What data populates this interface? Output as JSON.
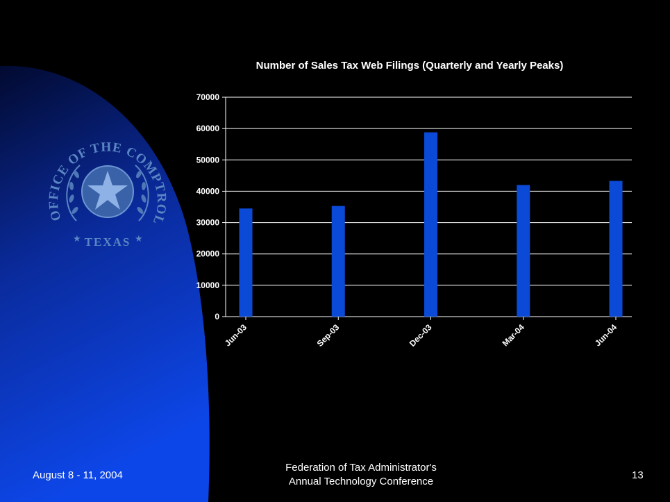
{
  "colors": {
    "background": "#000000",
    "swoosh_gradient": [
      "#020a30",
      "#0a2a9a",
      "#0d46e8"
    ],
    "bar": "#0a4ad6",
    "grid": "#ffffff",
    "text": "#ffffff",
    "seal": "#5b86c4"
  },
  "seal": {
    "ring_text": "OFFICE OF THE COMPTROLLER",
    "bottom_text": "TEXAS"
  },
  "chart_data": {
    "type": "bar",
    "title": "Number of Sales Tax Web Filings (Quarterly and Yearly Peaks)",
    "categories": [
      "Jun-03",
      "Sep-03",
      "Dec-03",
      "Mar-04",
      "Jun-04"
    ],
    "values": [
      34500,
      35300,
      58800,
      42000,
      43300
    ],
    "ylim": [
      0,
      70000
    ],
    "yticks": [
      0,
      10000,
      20000,
      30000,
      40000,
      50000,
      60000,
      70000
    ],
    "xlabel": "",
    "ylabel": "",
    "grid": true,
    "legend": "none"
  },
  "footer": {
    "date": "August 8 - 11, 2004",
    "conference_line1": "Federation of Tax Administrator's",
    "conference_line2": "Annual Technology Conference",
    "page_number": "13"
  }
}
